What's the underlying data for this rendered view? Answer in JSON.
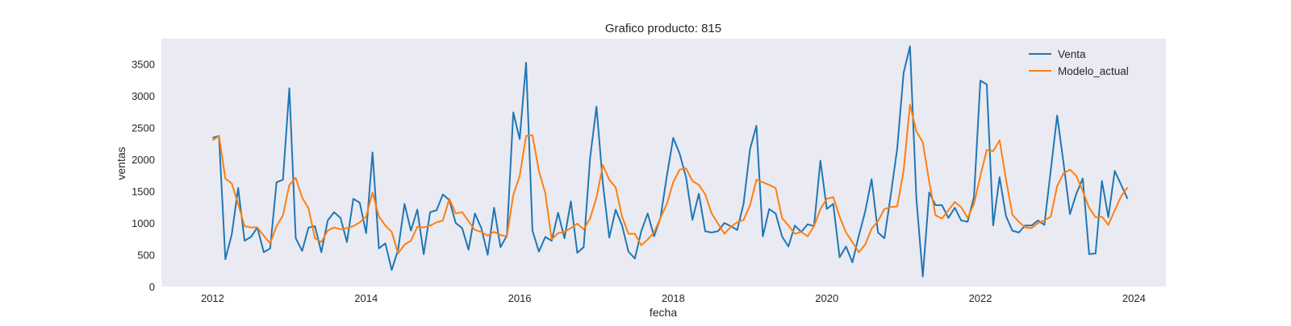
{
  "chart_data": {
    "type": "line",
    "title": "Grafico producto: 815",
    "xlabel": "fecha",
    "ylabel": "ventas",
    "xlim": [
      "2011-05-01",
      "2024-06-01"
    ],
    "ylim": [
      0,
      3900
    ],
    "x_ticks": [
      2012,
      2014,
      2016,
      2018,
      2020,
      2022,
      2024
    ],
    "y_ticks": [
      0,
      500,
      1000,
      1500,
      2000,
      2500,
      3000,
      3500
    ],
    "grid": false,
    "background": "#eaeaf2",
    "legend_position": "top-right",
    "x_start": "2012-01",
    "x_frequency": "monthly",
    "series": [
      {
        "name": "Venta",
        "color": "#1f77b4",
        "values": [
          2340,
          2370,
          430,
          820,
          1550,
          720,
          780,
          930,
          540,
          600,
          1640,
          1680,
          3120,
          760,
          560,
          930,
          950,
          540,
          1040,
          1170,
          1080,
          700,
          1380,
          1320,
          840,
          2110,
          600,
          680,
          260,
          580,
          1300,
          880,
          1210,
          510,
          1170,
          1200,
          1450,
          1360,
          1000,
          920,
          580,
          1150,
          920,
          500,
          1240,
          620,
          800,
          2740,
          2320,
          3520,
          880,
          550,
          780,
          720,
          1160,
          760,
          1340,
          530,
          620,
          2020,
          2830,
          1620,
          770,
          1210,
          960,
          550,
          440,
          870,
          1150,
          790,
          1080,
          1740,
          2340,
          2090,
          1720,
          1050,
          1460,
          870,
          850,
          870,
          1000,
          950,
          890,
          1310,
          2160,
          2530,
          790,
          1220,
          1150,
          790,
          630,
          960,
          860,
          980,
          950,
          1980,
          1220,
          1300,
          460,
          630,
          380,
          800,
          1180,
          1690,
          850,
          760,
          1440,
          2170,
          3360,
          3780,
          1380,
          160,
          1480,
          1280,
          1280,
          1080,
          1240,
          1040,
          1020,
          1410,
          3240,
          3180,
          960,
          1720,
          1110,
          880,
          850,
          960,
          960,
          1040,
          970,
          1830,
          2690,
          1940,
          1140,
          1460,
          1700,
          510,
          520,
          1660,
          1090,
          1820,
          1600,
          1380
        ]
      },
      {
        "name": "Modelo_actual",
        "color": "#ff7f0e",
        "values": [
          2300,
          2370,
          1700,
          1620,
          1300,
          950,
          930,
          930,
          800,
          680,
          950,
          1120,
          1600,
          1710,
          1400,
          1230,
          760,
          700,
          880,
          930,
          900,
          920,
          950,
          1010,
          1100,
          1480,
          1100,
          960,
          860,
          520,
          660,
          720,
          940,
          930,
          960,
          1010,
          1040,
          1380,
          1150,
          1170,
          1030,
          890,
          860,
          800,
          860,
          810,
          790,
          1440,
          1740,
          2370,
          2380,
          1820,
          1470,
          740,
          840,
          860,
          920,
          990,
          900,
          1070,
          1400,
          1910,
          1680,
          1560,
          1100,
          830,
          830,
          650,
          740,
          850,
          1080,
          1300,
          1640,
          1840,
          1860,
          1660,
          1600,
          1450,
          1150,
          990,
          830,
          940,
          1010,
          1050,
          1280,
          1680,
          1640,
          1600,
          1550,
          1080,
          960,
          830,
          860,
          790,
          950,
          1220,
          1380,
          1410,
          1100,
          850,
          700,
          540,
          660,
          910,
          1030,
          1220,
          1250,
          1260,
          1820,
          2860,
          2440,
          2270,
          1650,
          1120,
          1070,
          1200,
          1330,
          1250,
          1080,
          1300,
          1740,
          2150,
          2130,
          2300,
          1690,
          1130,
          1020,
          930,
          920,
          1000,
          1040,
          1100,
          1580,
          1780,
          1840,
          1740,
          1500,
          1240,
          1090,
          1100,
          970,
          1200,
          1420,
          1560
        ]
      }
    ]
  }
}
